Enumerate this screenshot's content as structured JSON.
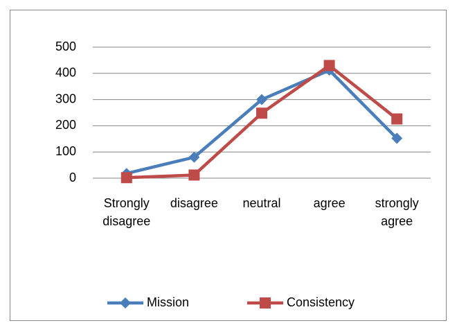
{
  "chart_data": {
    "type": "line",
    "categories": [
      "Strongly disagree",
      "disagree",
      "neutral",
      "agree",
      "strongly agree"
    ],
    "series": [
      {
        "name": "Mission",
        "color": "#4a7ebb",
        "marker": "diamond",
        "values": [
          18,
          80,
          300,
          412,
          152
        ]
      },
      {
        "name": "Consistency",
        "color": "#be4b48",
        "marker": "square",
        "values": [
          2,
          12,
          248,
          430,
          226
        ]
      }
    ],
    "ylim": [
      0,
      500
    ],
    "yticks": [
      0,
      100,
      200,
      300,
      400,
      500
    ],
    "grid": true,
    "legend": "bottom"
  }
}
